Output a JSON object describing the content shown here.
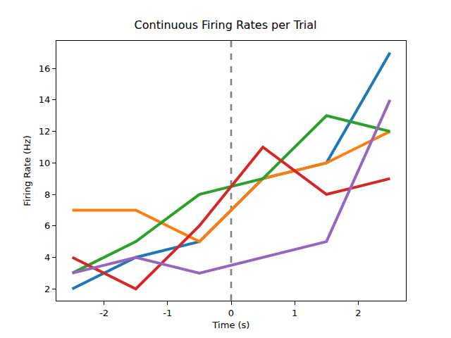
{
  "chart_data": {
    "type": "line",
    "title": "Continuous Firing Rates per Trial",
    "x_label": "Time (s)",
    "y_label": "Firing Rate (Hz)",
    "x": [
      -2.5,
      -1.5,
      -0.5,
      0.5,
      1.5,
      2.5
    ],
    "series": [
      {
        "color": "#1f77b4",
        "values": [
          2,
          4,
          5,
          9,
          10,
          17
        ]
      },
      {
        "color": "#ff7f0e",
        "values": [
          7,
          7,
          5,
          9,
          10,
          12
        ]
      },
      {
        "color": "#2ca02c",
        "values": [
          3,
          5,
          8,
          9,
          13,
          12
        ]
      },
      {
        "color": "#d62728",
        "values": [
          4,
          2,
          6,
          11,
          8,
          9
        ]
      },
      {
        "color": "#9467bd",
        "values": [
          3,
          4,
          3,
          4,
          5,
          14
        ]
      }
    ],
    "xlim": [
      -2.75,
      2.75
    ],
    "xticks": [
      -2,
      -1,
      0,
      1,
      2
    ],
    "ylim": [
      1.25,
      17.75
    ],
    "yticks": [
      2,
      4,
      6,
      8,
      10,
      12,
      14,
      16
    ],
    "grid": false,
    "vline": {
      "x": 0,
      "color": "gray",
      "line_style": "dashed"
    }
  }
}
